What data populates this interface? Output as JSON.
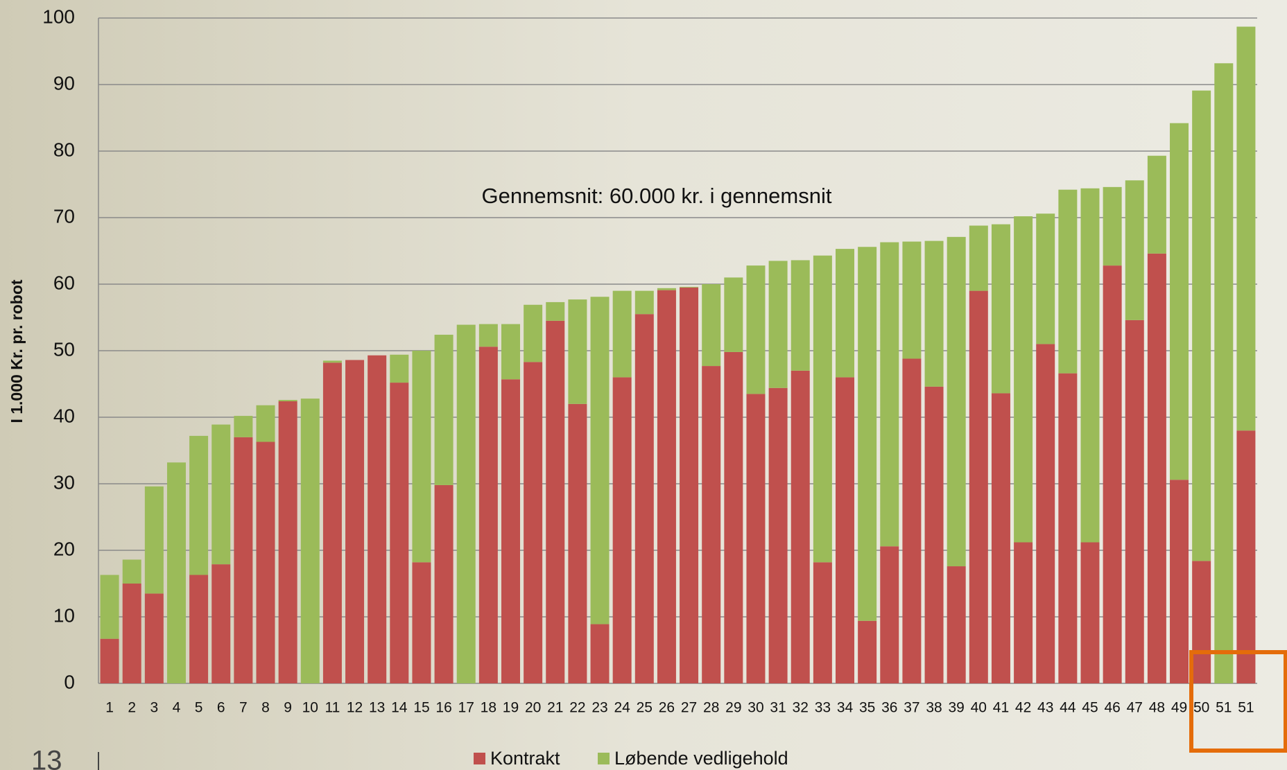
{
  "page_number": "13",
  "chart_data": {
    "type": "stacked_bar",
    "annotation": "Gennemsnit: 60.000 kr. i gennemsnit",
    "y_label": "I 1.000 Kr. pr. robot",
    "categories": [
      "1",
      "2",
      "3",
      "4",
      "5",
      "6",
      "7",
      "8",
      "9",
      "10",
      "11",
      "12",
      "13",
      "14",
      "15",
      "16",
      "17",
      "18",
      "19",
      "20",
      "21",
      "22",
      "23",
      "24",
      "25",
      "26",
      "27",
      "28",
      "29",
      "30",
      "31",
      "32",
      "33",
      "34",
      "35",
      "36",
      "37",
      "38",
      "39",
      "40",
      "41",
      "42",
      "43",
      "44",
      "45",
      "46",
      "47",
      "48",
      "49",
      "50",
      "51",
      "51"
    ],
    "series": [
      {
        "name": "Kontrakt",
        "color": "#c0504d",
        "values": [
          6.7,
          15,
          13.5,
          0,
          16.3,
          17.9,
          37,
          36.3,
          42.4,
          0,
          48.2,
          48.6,
          49.3,
          45.2,
          18.2,
          29.8,
          0,
          50.6,
          45.7,
          48.3,
          54.5,
          42,
          8.9,
          46,
          55.5,
          59.1,
          59.5,
          47.7,
          49.8,
          43.5,
          44.4,
          47,
          18.2,
          46,
          9.4,
          20.6,
          48.8,
          44.6,
          17.6,
          59,
          43.6,
          21.2,
          51,
          46.6,
          21.2,
          62.8,
          54.6,
          64.6,
          30.6,
          18.4,
          0,
          38
        ]
      },
      {
        "name": "Løbende vedligehold",
        "color": "#9bbb59",
        "values": [
          9.6,
          3.6,
          16.1,
          33.2,
          20.9,
          21,
          3.2,
          5.5,
          0.2,
          42.8,
          0.3,
          0,
          0,
          4.2,
          31.8,
          22.6,
          53.9,
          3.4,
          8.3,
          8.6,
          2.8,
          15.7,
          49.2,
          13,
          3.5,
          0.3,
          0.1,
          12.3,
          11.2,
          19.3,
          19.1,
          16.6,
          46.1,
          19.3,
          56.2,
          45.7,
          17.6,
          21.9,
          49.5,
          9.8,
          25.4,
          49,
          19.6,
          27.6,
          53.2,
          11.8,
          21,
          14.7,
          53.6,
          70.7,
          93.2,
          60.7
        ]
      }
    ],
    "ylim": [
      0,
      100
    ],
    "yticks": [
      0,
      10,
      20,
      30,
      40,
      50,
      60,
      70,
      80,
      90,
      100
    ],
    "grid": true,
    "legend": "bottom"
  }
}
